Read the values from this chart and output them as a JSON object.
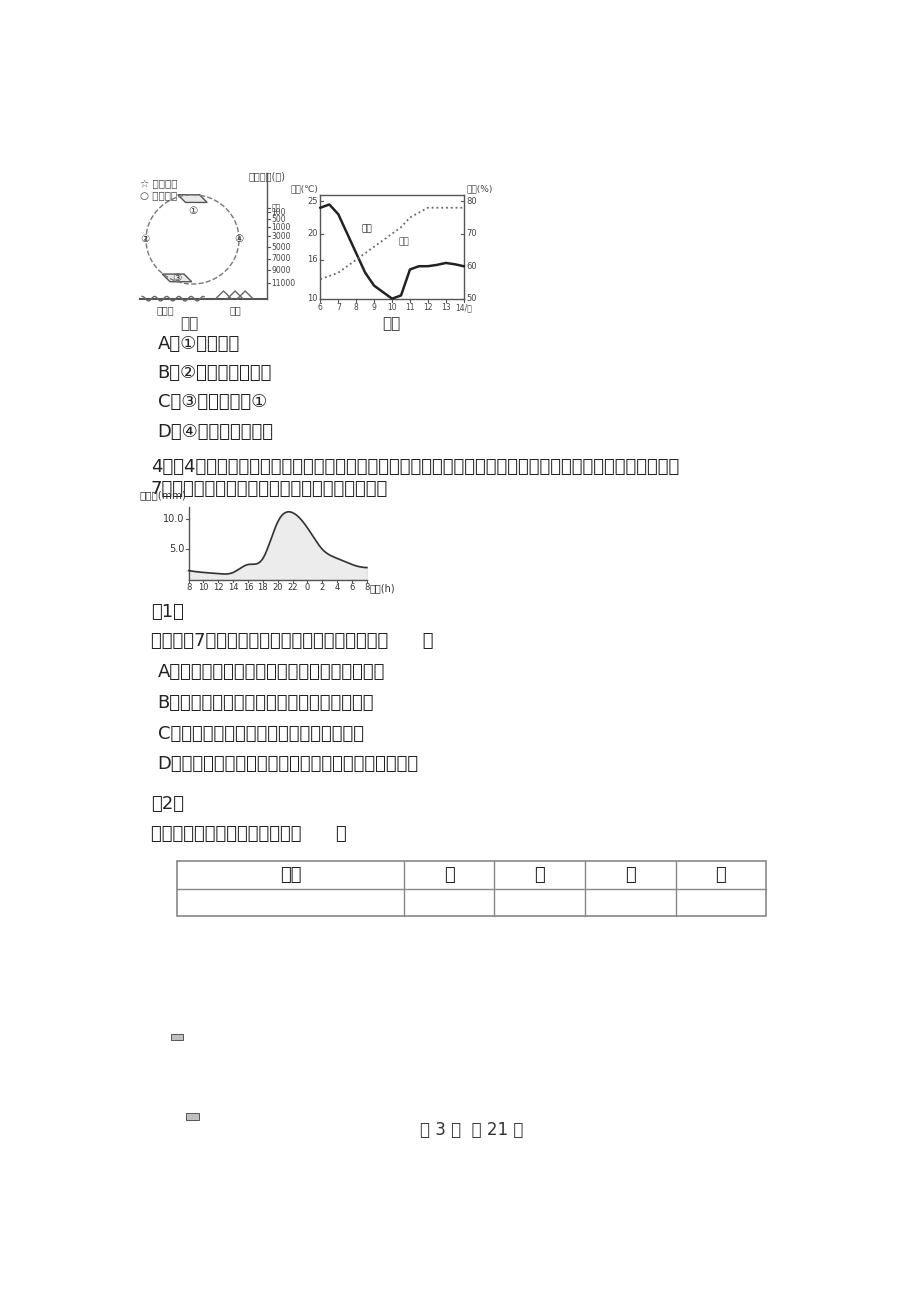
{
  "background_color": "#ffffff",
  "page_width": 9.2,
  "page_height": 13.02,
  "fig1_caption": "图甲",
  "fig2_caption": "图乙",
  "options_part1": [
    "A．①处为陆风",
    "B．②处更易形成降水",
    "C．③处风力小于①",
    "D．④处盛行上升气流"
  ],
  "question4_text1": "4．（4分）拉萨河流域拥有丰富的物质文化和非物质文化资源，拉萨位于宽阔的拉萨河谷地北侧。如图为拉萨",
  "question4_text2": "7月降水量日平均变化图。读图，回答以下问题。",
  "fig3_xticks": [
    "8",
    "10",
    "12",
    "14",
    "16",
    "18",
    "20",
    "22",
    "0",
    "2",
    "4",
    "6",
    "8"
  ],
  "sub_q1": "（1）",
  "sub_q1_text": "有关拉萨7月降水日变化成因的叙述，正确的是（      ）",
  "options_part2": [
    "A．夜晚地面降温迅速，近地面水汽易凝结成雨",
    "B．夜晚近地面形成逆温层，水汽易凝结成雨",
    "C．白天盛行下沉气流，水汽不易凝结成雨",
    "D．白天升温迅速，盛行上升气流，水汽不易凝结成雨"
  ],
  "sub_q2": "（2）",
  "sub_q2_text": "下表气候资料最符合拉萨的是（      ）",
  "table_headers": [
    "地点",
    "甲",
    "乙",
    "丙",
    "丁"
  ],
  "footer_text": "第 3 页  共 21 页"
}
